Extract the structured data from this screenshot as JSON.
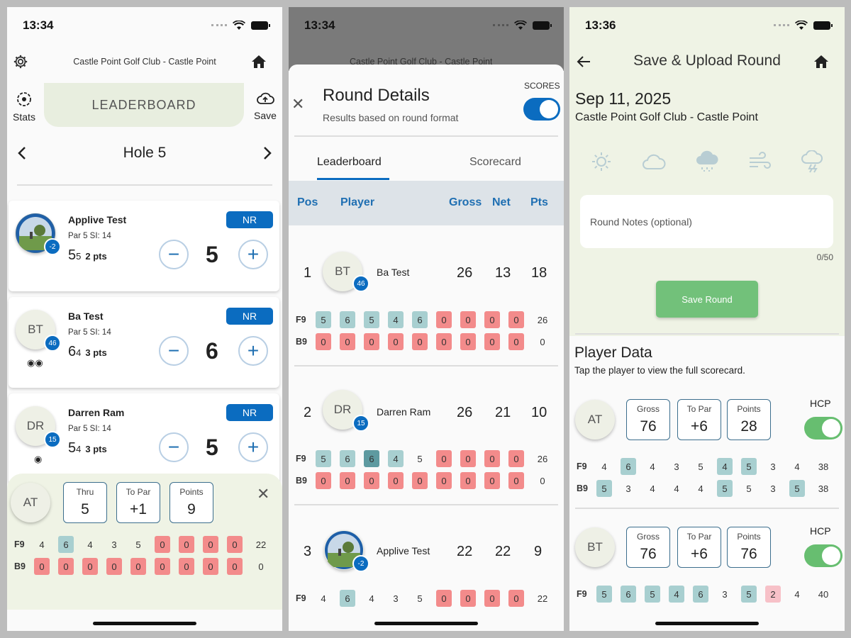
{
  "p1": {
    "time": "13:34",
    "club": "Castle Point Golf Club - Castle Point",
    "stats_label": "Stats",
    "save_label": "Save",
    "leaderboard_label": "LEADERBOARD",
    "hole_label": "Hole 5",
    "players": [
      {
        "name": "Applive Test",
        "sub": "Par 5 SI: 14",
        "gross": "5",
        "net": "5",
        "pts": "2 pts",
        "score": "5",
        "hcp": "-2",
        "badge": "NR",
        "initials": ""
      },
      {
        "name": "Ba Test",
        "sub": "Par 5 SI: 14",
        "gross": "6",
        "net": "4",
        "pts": "3 pts",
        "score": "6",
        "hcp": "46",
        "badge": "NR",
        "initials": "BT"
      },
      {
        "name": "Darren Ram",
        "sub": "Par 5 SI: 14",
        "gross": "5",
        "net": "4",
        "pts": "3 pts",
        "score": "5",
        "hcp": "15",
        "badge": "NR",
        "initials": "DR"
      }
    ],
    "summary": {
      "initials": "AT",
      "thru_label": "Thru",
      "thru": "5",
      "topar_label": "To Par",
      "topar": "+1",
      "points_label": "Points",
      "points": "9",
      "f9_label": "F9",
      "f9": [
        "4",
        "6",
        "4",
        "3",
        "5",
        "0",
        "0",
        "0",
        "0"
      ],
      "f9_total": "22",
      "b9_label": "B9",
      "b9": [
        "0",
        "0",
        "0",
        "0",
        "0",
        "0",
        "0",
        "0",
        "0"
      ],
      "b9_total": "0"
    }
  },
  "p2": {
    "time": "13:34",
    "club": "Castle Point Golf Club - Castle Point",
    "title": "Round Details",
    "subtitle": "Results based on round format",
    "scores_label": "SCORES",
    "tab_leaderboard": "Leaderboard",
    "tab_scorecard": "Scorecard",
    "hdr_pos": "Pos",
    "hdr_player": "Player",
    "hdr_gross": "Gross",
    "hdr_net": "Net",
    "hdr_pts": "Pts",
    "rows": [
      {
        "pos": "1",
        "initials": "BT",
        "hcp": "46",
        "name": "Ba Test",
        "gross": "26",
        "net": "13",
        "pts": "18",
        "f9": [
          "5",
          "6",
          "5",
          "4",
          "6",
          "0",
          "0",
          "0",
          "0"
        ],
        "f9_total": "26",
        "b9": [
          "0",
          "0",
          "0",
          "0",
          "0",
          "0",
          "0",
          "0",
          "0"
        ],
        "b9_total": "0"
      },
      {
        "pos": "2",
        "initials": "DR",
        "hcp": "15",
        "name": "Darren Ram",
        "gross": "26",
        "net": "21",
        "pts": "10",
        "f9": [
          "5",
          "6",
          "6",
          "4",
          "5",
          "0",
          "0",
          "0",
          "0"
        ],
        "f9_total": "26",
        "b9": [
          "0",
          "0",
          "0",
          "0",
          "0",
          "0",
          "0",
          "0",
          "0"
        ],
        "b9_total": "0"
      },
      {
        "pos": "3",
        "initials": "",
        "hcp": "-2",
        "name": "Applive Test",
        "gross": "22",
        "net": "22",
        "pts": "9",
        "f9": [
          "4",
          "6",
          "4",
          "3",
          "5",
          "0",
          "0",
          "0",
          "0"
        ],
        "f9_total": "22"
      }
    ],
    "f9_label": "F9",
    "b9_label": "B9"
  },
  "p3": {
    "time": "13:36",
    "title": "Save & Upload Round",
    "date": "Sep 11, 2025",
    "club": "Castle Point Golf Club - Castle Point",
    "notes_placeholder": "Round Notes  (optional)",
    "counter": "0/50",
    "save_button": "Save Round",
    "player_data_title": "Player Data",
    "player_data_sub": "Tap the player to view the full scorecard.",
    "hcp_label": "HCP",
    "gross_label": "Gross",
    "topar_label": "To Par",
    "points_label": "Points",
    "players": [
      {
        "initials": "AT",
        "gross": "76",
        "topar": "+6",
        "points": "28",
        "f9": [
          "4",
          "6",
          "4",
          "3",
          "5",
          "4",
          "5",
          "3",
          "4"
        ],
        "f9_total": "38",
        "b9": [
          "5",
          "3",
          "4",
          "4",
          "4",
          "5",
          "5",
          "3",
          "5"
        ],
        "b9_total": "38"
      },
      {
        "initials": "BT",
        "gross": "76",
        "topar": "+6",
        "points": "76",
        "f9": [
          "5",
          "6",
          "5",
          "4",
          "6",
          "3",
          "5",
          "2",
          "4"
        ],
        "f9_total": "40"
      }
    ],
    "f9_label": "F9",
    "b9_label": "B9"
  }
}
